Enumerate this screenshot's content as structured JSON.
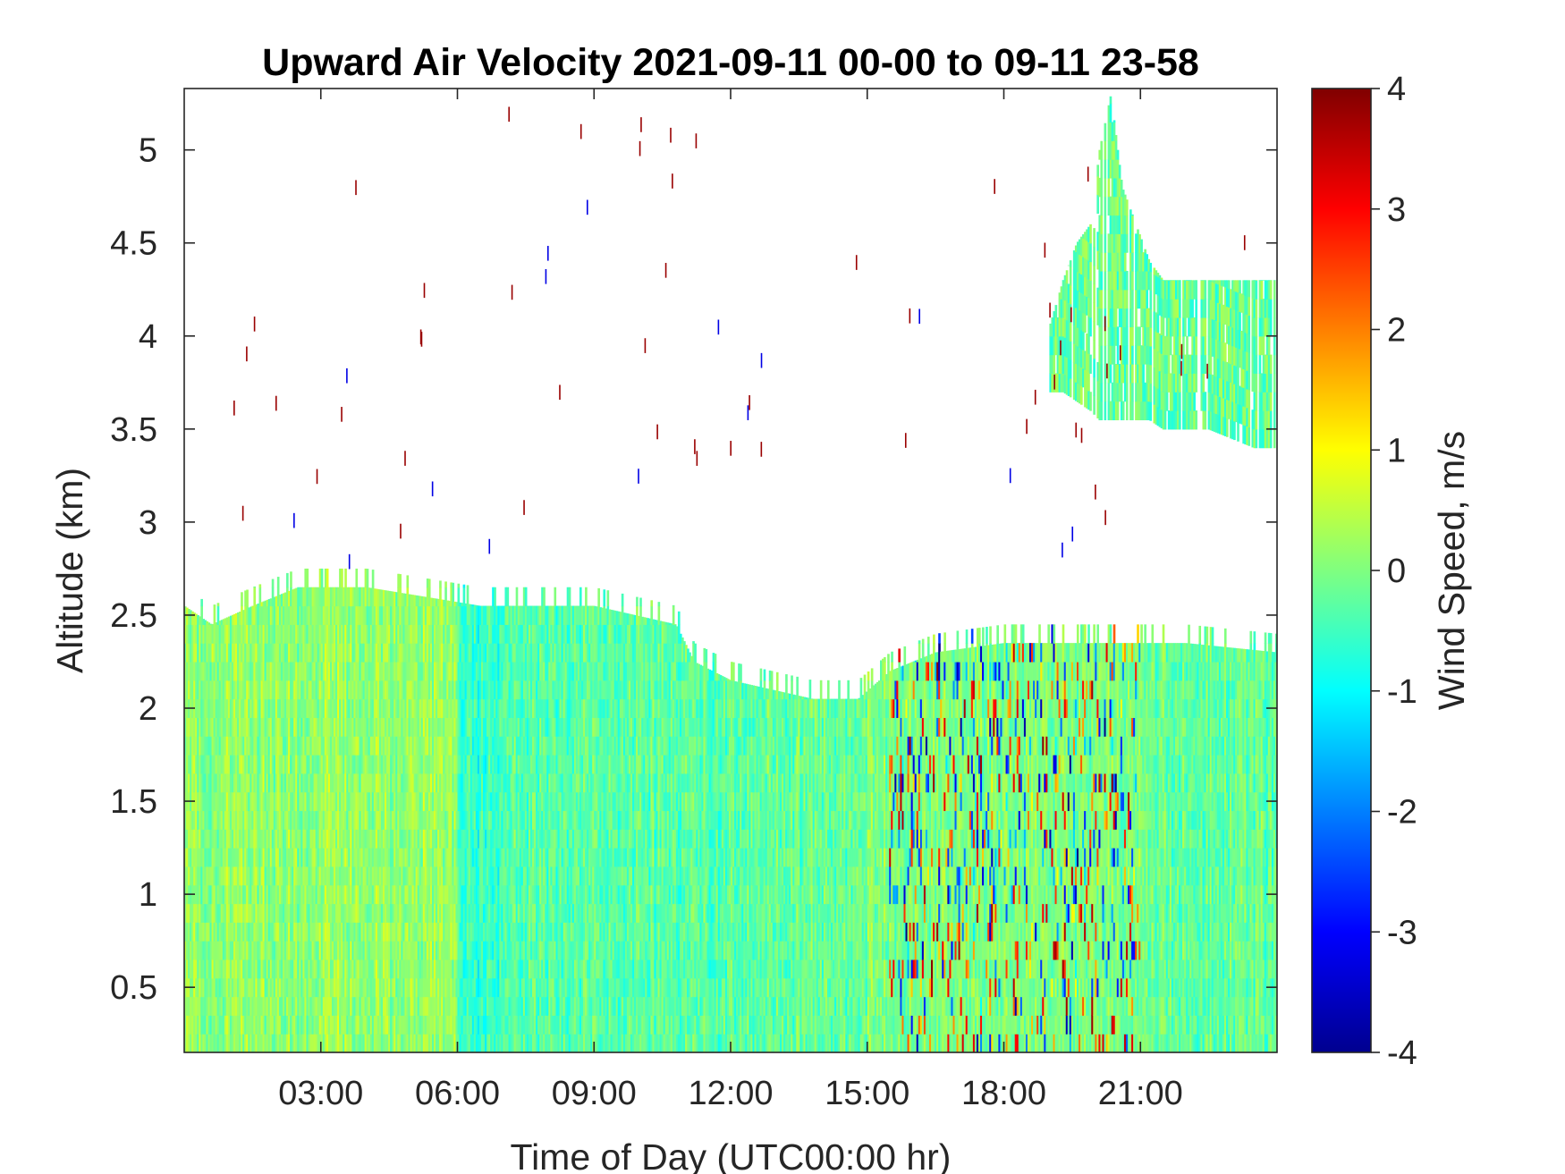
{
  "chart_data": {
    "type": "heatmap",
    "title": "Upward Air Velocity 2021-09-11 00-00 to 09-11 23-58",
    "xlabel": "Time of Day (UTC00:00 hr)",
    "ylabel": "Altitude (km)",
    "colorbar_label": "Wind Speed, m/s",
    "colormap": "jet",
    "xlim_hours": [
      0,
      24
    ],
    "ylim_km": [
      0.15,
      5.33
    ],
    "clim": [
      -4,
      4
    ],
    "x_ticks": [
      {
        "value": 3,
        "label": "03:00"
      },
      {
        "value": 6,
        "label": "06:00"
      },
      {
        "value": 9,
        "label": "09:00"
      },
      {
        "value": 12,
        "label": "12:00"
      },
      {
        "value": 15,
        "label": "15:00"
      },
      {
        "value": 18,
        "label": "18:00"
      },
      {
        "value": 21,
        "label": "21:00"
      }
    ],
    "y_ticks": [
      {
        "value": 0.5,
        "label": "0.5"
      },
      {
        "value": 1,
        "label": "1"
      },
      {
        "value": 1.5,
        "label": "1.5"
      },
      {
        "value": 2,
        "label": "2"
      },
      {
        "value": 2.5,
        "label": "2.5"
      },
      {
        "value": 3,
        "label": "3"
      },
      {
        "value": 3.5,
        "label": "3.5"
      },
      {
        "value": 4,
        "label": "4"
      },
      {
        "value": 4.5,
        "label": "4.5"
      },
      {
        "value": 5,
        "label": "5"
      }
    ],
    "colorbar_ticks": [
      {
        "value": 4,
        "label": "4"
      },
      {
        "value": 3,
        "label": "3"
      },
      {
        "value": 2,
        "label": "2"
      },
      {
        "value": 1,
        "label": "1"
      },
      {
        "value": 0,
        "label": "0"
      },
      {
        "value": -1,
        "label": "-1"
      },
      {
        "value": -2,
        "label": "-2"
      },
      {
        "value": -3,
        "label": "-3"
      },
      {
        "value": -4,
        "label": "-4"
      }
    ],
    "boundary_layer_top_km": [
      {
        "time": 0.0,
        "top": 2.55
      },
      {
        "time": 0.6,
        "top": 2.45
      },
      {
        "time": 1.5,
        "top": 2.55
      },
      {
        "time": 2.5,
        "top": 2.65
      },
      {
        "time": 4.0,
        "top": 2.65
      },
      {
        "time": 6.5,
        "top": 2.55
      },
      {
        "time": 9.0,
        "top": 2.55
      },
      {
        "time": 10.8,
        "top": 2.45
      },
      {
        "time": 11.2,
        "top": 2.25
      },
      {
        "time": 12.0,
        "top": 2.15
      },
      {
        "time": 13.8,
        "top": 2.05
      },
      {
        "time": 14.8,
        "top": 2.05
      },
      {
        "time": 15.5,
        "top": 2.2
      },
      {
        "time": 16.5,
        "top": 2.3
      },
      {
        "time": 18.0,
        "top": 2.35
      },
      {
        "time": 20.0,
        "top": 2.35
      },
      {
        "time": 22.0,
        "top": 2.35
      },
      {
        "time": 24.0,
        "top": 2.3
      }
    ],
    "upper_cloud_layer": [
      {
        "time": 19.0,
        "bottom": 3.7,
        "top": 4.05
      },
      {
        "time": 19.3,
        "bottom": 3.7,
        "top": 4.3
      },
      {
        "time": 19.6,
        "bottom": 3.65,
        "top": 4.5
      },
      {
        "time": 19.9,
        "bottom": 3.6,
        "top": 4.6
      },
      {
        "time": 20.1,
        "bottom": 3.55,
        "top": 5.0
      },
      {
        "time": 20.35,
        "bottom": 3.55,
        "top": 5.3
      },
      {
        "time": 20.6,
        "bottom": 3.55,
        "top": 4.8
      },
      {
        "time": 20.9,
        "bottom": 3.55,
        "top": 4.6
      },
      {
        "time": 21.2,
        "bottom": 3.55,
        "top": 4.4
      },
      {
        "time": 21.5,
        "bottom": 3.5,
        "top": 4.3
      },
      {
        "time": 22.5,
        "bottom": 3.5,
        "top": 4.3
      },
      {
        "time": 23.5,
        "bottom": 3.4,
        "top": 4.3
      },
      {
        "time": 24.0,
        "bottom": 3.4,
        "top": 4.3
      }
    ],
    "mean_velocity_by_period": [
      {
        "start": 0,
        "end": 3,
        "mean": 0.1
      },
      {
        "start": 3,
        "end": 6,
        "mean": 0.2
      },
      {
        "start": 6,
        "end": 7,
        "mean": -0.6
      },
      {
        "start": 7,
        "end": 12,
        "mean": -0.3
      },
      {
        "start": 12,
        "end": 15,
        "mean": -0.2
      },
      {
        "start": 15,
        "end": 21,
        "mean": 0.0
      },
      {
        "start": 21,
        "end": 24,
        "mean": -0.2
      }
    ],
    "grid": false,
    "legend": "colorbar-right"
  }
}
